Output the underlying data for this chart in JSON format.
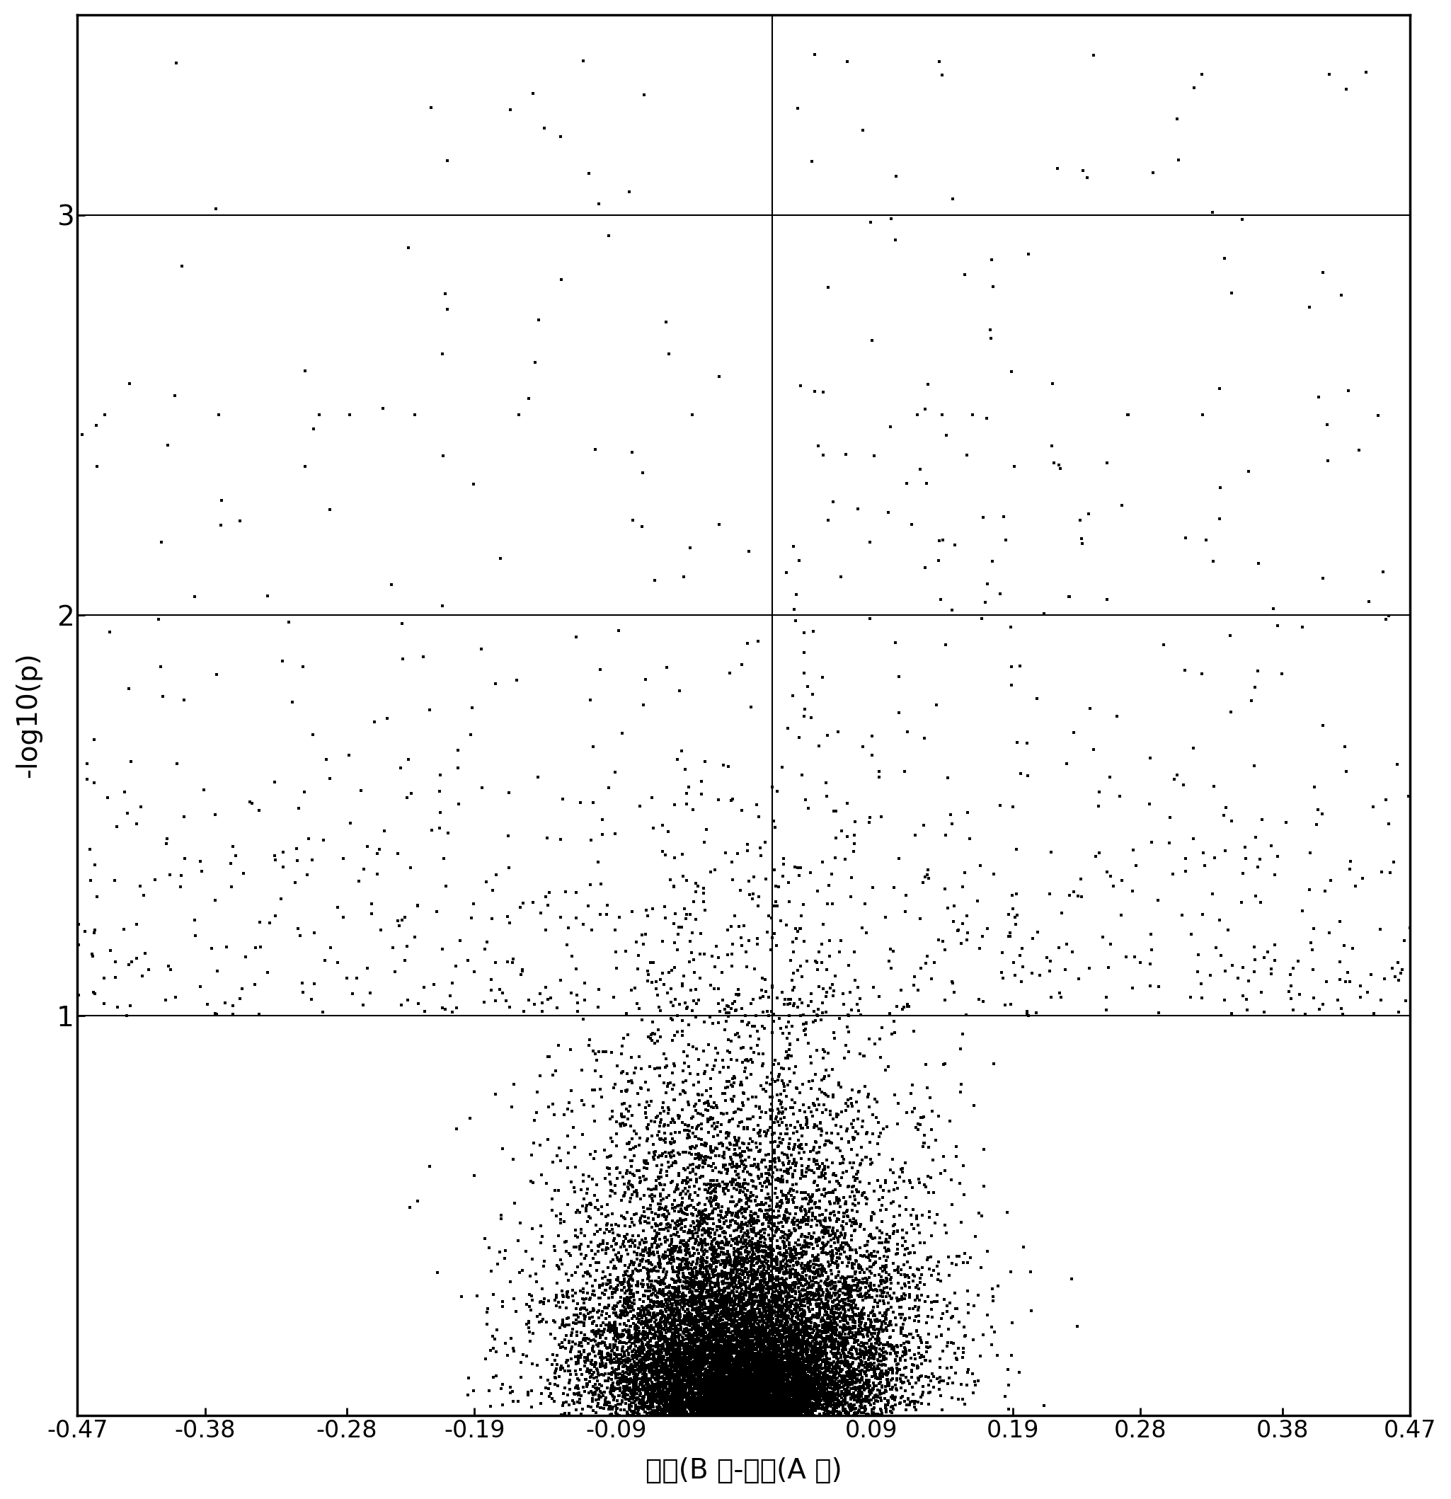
{
  "title": "",
  "xlabel": "平均(B 组-平均(A 组)",
  "ylabel": "-log10(p)",
  "xlim": [
    -0.47,
    0.47
  ],
  "ylim": [
    0,
    3.5
  ],
  "xticks": [
    -0.47,
    -0.38,
    -0.28,
    -0.19,
    -0.09,
    0.09,
    0.19,
    0.28,
    0.38,
    0.47
  ],
  "yticks": [
    1,
    2,
    3
  ],
  "hlines": [
    1,
    2,
    3
  ],
  "vline": 0.02,
  "point_color": "#000000",
  "background_color": "#ffffff",
  "seed": 42,
  "n_points": 12000
}
